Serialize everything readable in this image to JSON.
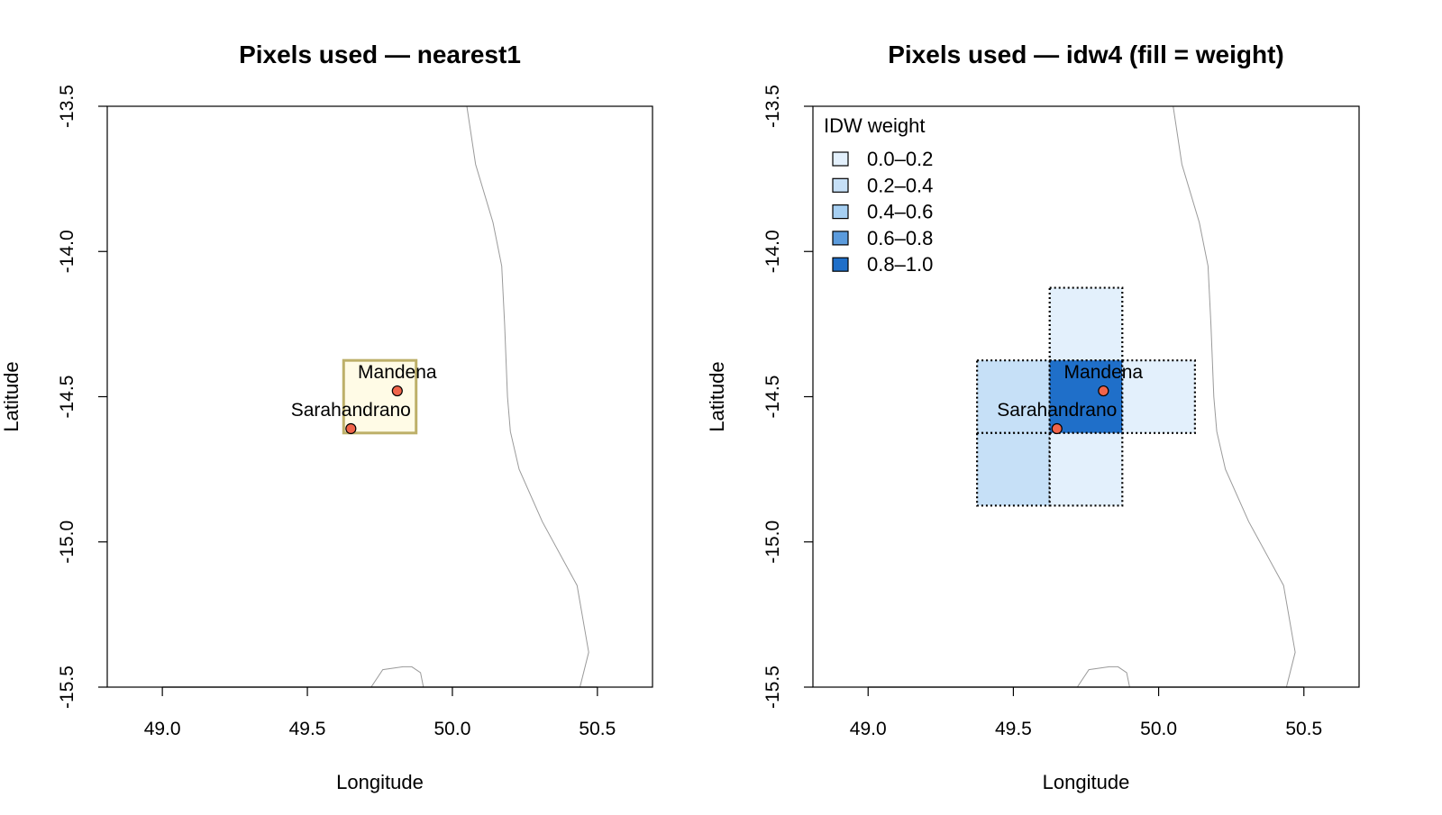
{
  "chart_data": [
    {
      "type": "map",
      "title": "Pixels used — nearest1",
      "xlabel": "Longitude",
      "ylabel": "Latitude",
      "xlim": [
        48.81,
        50.69
      ],
      "ylim": [
        -15.5,
        -13.5
      ],
      "xticks": [
        "49.0",
        "49.5",
        "50.0",
        "50.5"
      ],
      "yticks": [
        "-13.5",
        "-14.0",
        "-14.5",
        "-15.0",
        "-15.5"
      ],
      "pixel_size": 0.25,
      "pixels": [
        {
          "lon_min": 49.625,
          "lon_max": 49.875,
          "lat_min": -14.625,
          "lat_max": -14.375,
          "fill": "#FFFBE6",
          "border": "#BDB069",
          "dotted": false
        }
      ],
      "sites": [
        {
          "name": "Mandena",
          "lon": 49.81,
          "lat": -14.48,
          "label_pos": "above"
        },
        {
          "name": "Sarahandrano",
          "lon": 49.65,
          "lat": -14.61,
          "label_pos": "above"
        }
      ],
      "point_color": "#F0644A",
      "coastline_color": "#9A9A9A"
    },
    {
      "type": "map",
      "title": "Pixels used — idw4 (fill = weight)",
      "xlabel": "Longitude",
      "ylabel": "Latitude",
      "xlim": [
        48.81,
        50.69
      ],
      "ylim": [
        -15.5,
        -13.5
      ],
      "xticks": [
        "49.0",
        "49.5",
        "50.0",
        "50.5"
      ],
      "yticks": [
        "-13.5",
        "-14.0",
        "-14.5",
        "-15.0",
        "-15.5"
      ],
      "pixel_size": 0.25,
      "legend": {
        "title": "IDW weight",
        "placement": "top-left",
        "items": [
          {
            "label": "0.0–0.2",
            "color": "#E3F0FC"
          },
          {
            "label": "0.2–0.4",
            "color": "#C6E0F7"
          },
          {
            "label": "0.4–0.6",
            "color": "#A6CFF2"
          },
          {
            "label": "0.6–0.8",
            "color": "#5B9BDC"
          },
          {
            "label": "0.8–1.0",
            "color": "#1F6FC9"
          }
        ]
      },
      "pixels": [
        {
          "lon_min": 49.625,
          "lon_max": 49.875,
          "lat_min": -14.375,
          "lat_max": -14.125,
          "weight_class": 0,
          "dotted": true
        },
        {
          "lon_min": 49.375,
          "lon_max": 49.625,
          "lat_min": -14.625,
          "lat_max": -14.375,
          "weight_class": 1,
          "dotted": true
        },
        {
          "lon_min": 49.625,
          "lon_max": 49.875,
          "lat_min": -14.625,
          "lat_max": -14.375,
          "weight_class": 4,
          "dotted": true
        },
        {
          "lon_min": 49.875,
          "lon_max": 50.125,
          "lat_min": -14.625,
          "lat_max": -14.375,
          "weight_class": 0,
          "dotted": true
        },
        {
          "lon_min": 49.375,
          "lon_max": 49.625,
          "lat_min": -14.875,
          "lat_max": -14.625,
          "weight_class": 1,
          "dotted": true
        },
        {
          "lon_min": 49.625,
          "lon_max": 49.875,
          "lat_min": -14.875,
          "lat_max": -14.625,
          "weight_class": 0,
          "dotted": true
        }
      ],
      "sites": [
        {
          "name": "Mandena",
          "lon": 49.81,
          "lat": -14.48,
          "label_pos": "above"
        },
        {
          "name": "Sarahandrano",
          "lon": 49.65,
          "lat": -14.61,
          "label_pos": "above"
        }
      ],
      "point_color": "#F0644A",
      "coastline_color": "#9A9A9A"
    }
  ],
  "coastline": {
    "main": [
      [
        50.05,
        -13.5
      ],
      [
        50.08,
        -13.7
      ],
      [
        50.14,
        -13.9
      ],
      [
        50.17,
        -14.05
      ],
      [
        50.18,
        -14.25
      ],
      [
        50.19,
        -14.5
      ],
      [
        50.2,
        -14.62
      ],
      [
        50.23,
        -14.75
      ],
      [
        50.31,
        -14.93
      ],
      [
        50.43,
        -15.15
      ],
      [
        50.47,
        -15.38
      ],
      [
        50.44,
        -15.5
      ]
    ],
    "bay": [
      [
        49.72,
        -15.5
      ],
      [
        49.76,
        -15.44
      ],
      [
        49.83,
        -15.43
      ],
      [
        49.86,
        -15.43
      ],
      [
        49.89,
        -15.45
      ],
      [
        49.9,
        -15.5
      ]
    ]
  }
}
